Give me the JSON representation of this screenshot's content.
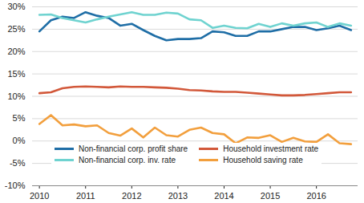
{
  "chart_data": {
    "type": "line",
    "x": [
      2010,
      2010.25,
      2010.5,
      2010.75,
      2011,
      2011.25,
      2011.5,
      2011.75,
      2012,
      2012.25,
      2012.5,
      2012.75,
      2013,
      2013.25,
      2013.5,
      2013.75,
      2014,
      2014.25,
      2014.5,
      2014.75,
      2015,
      2015.25,
      2015.5,
      2015.75,
      2016,
      2016.25,
      2016.5,
      2016.75
    ],
    "series": [
      {
        "name": "Non-financial corp. profit share",
        "color": "#1f6ea6",
        "values": [
          24.5,
          27.0,
          27.8,
          27.5,
          28.8,
          28.0,
          27.5,
          25.8,
          26.2,
          24.8,
          23.5,
          22.5,
          22.8,
          22.8,
          23.0,
          24.5,
          24.3,
          23.5,
          23.5,
          24.5,
          24.5,
          25.0,
          25.5,
          25.5,
          24.8,
          25.2,
          25.8,
          24.8
        ]
      },
      {
        "name": "Non-financial corp. inv. rate",
        "color": "#6fd3d0",
        "values": [
          28.2,
          28.3,
          27.5,
          27.0,
          26.5,
          27.2,
          27.8,
          28.3,
          28.8,
          28.2,
          28.2,
          28.7,
          28.5,
          27.2,
          27.0,
          25.3,
          25.8,
          25.3,
          25.2,
          26.2,
          25.5,
          26.3,
          25.8,
          26.3,
          26.5,
          25.5,
          26.3,
          25.8
        ]
      },
      {
        "name": "Household investment rate",
        "color": "#d2583a",
        "values": [
          10.7,
          10.9,
          11.8,
          12.1,
          12.2,
          12.1,
          12.0,
          12.2,
          12.1,
          12.1,
          12.0,
          11.9,
          11.7,
          11.4,
          11.3,
          11.1,
          11.0,
          11.0,
          10.8,
          10.6,
          10.4,
          10.2,
          10.2,
          10.3,
          10.5,
          10.7,
          10.9,
          10.9
        ]
      },
      {
        "name": "Household saving rate",
        "color": "#f29f3d",
        "values": [
          3.8,
          5.8,
          3.5,
          3.7,
          3.3,
          3.5,
          1.8,
          1.2,
          2.8,
          0.8,
          3.0,
          1.3,
          1.0,
          2.5,
          3.0,
          1.8,
          1.5,
          -0.5,
          0.8,
          0.7,
          1.3,
          -0.2,
          0.7,
          -0.1,
          -0.2,
          1.5,
          -0.5,
          -0.7
        ]
      }
    ],
    "xlim": [
      2009.85,
      2016.9
    ],
    "xticks": [
      2010,
      2011,
      2012,
      2013,
      2014,
      2015,
      2016
    ],
    "ylim": [
      -10,
      30
    ],
    "yticks": [
      {
        "value": -10,
        "label": "-10%"
      },
      {
        "value": -5,
        "label": "-5%"
      },
      {
        "value": 0,
        "label": "0%"
      },
      {
        "value": 5,
        "label": "5%"
      },
      {
        "value": 10,
        "label": "10%"
      },
      {
        "value": 15,
        "label": "15%"
      },
      {
        "value": 20,
        "label": "20%"
      },
      {
        "value": 25,
        "label": "25%"
      },
      {
        "value": 30,
        "label": "30%"
      }
    ],
    "grid": true,
    "legend": "lower left"
  }
}
